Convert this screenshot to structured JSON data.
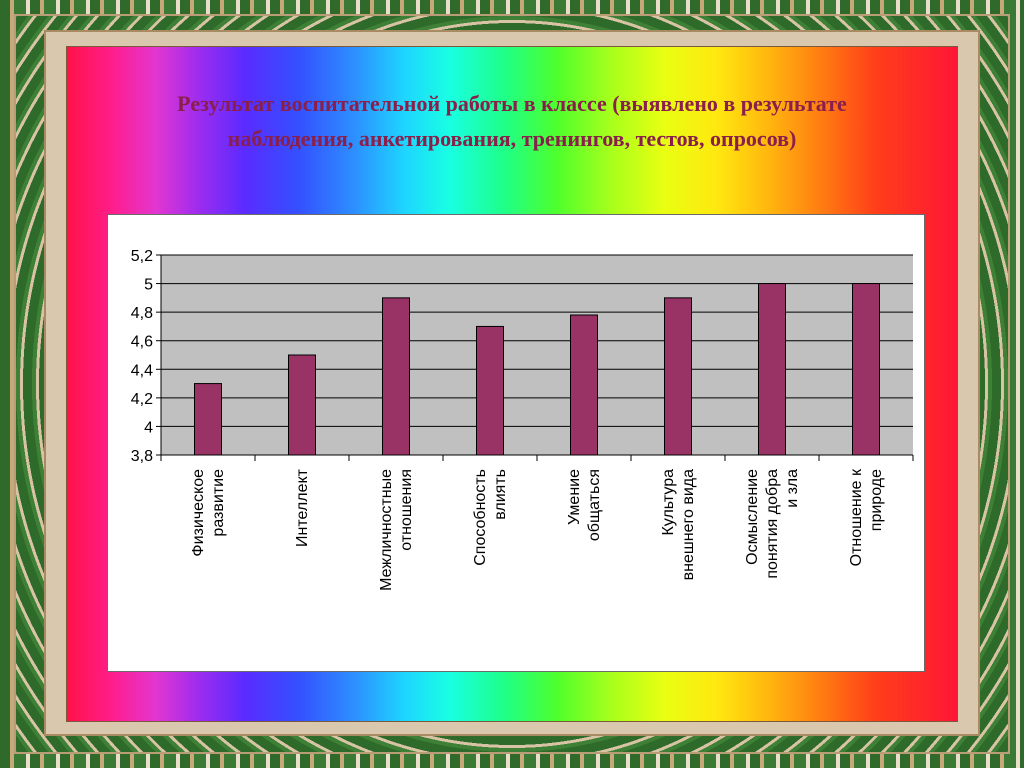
{
  "slide": {
    "title": "Результат воспитательной работы в классе (выявлено в результате наблюдения, анкетирования, тренингов, тестов, опросов)"
  },
  "chart_data": {
    "type": "bar",
    "categories": [
      [
        "Физическое",
        "развитие"
      ],
      [
        "Интеллект"
      ],
      [
        "Межличностные",
        "отношения"
      ],
      [
        "Способность",
        "влиять"
      ],
      [
        "Умение",
        "общаться"
      ],
      [
        "Культура",
        "внешнего вида"
      ],
      [
        "Осмысление",
        "понятия добра",
        "и зла"
      ],
      [
        "Отношение к",
        "природе"
      ]
    ],
    "values": [
      4.3,
      4.5,
      4.9,
      4.7,
      4.78,
      4.9,
      5.0,
      5.0
    ],
    "yticks": [
      "3,8",
      "4",
      "4,2",
      "4,4",
      "4,6",
      "4,8",
      "5",
      "5,2"
    ],
    "ylim": [
      3.8,
      5.2
    ],
    "grid": true,
    "legend": "none",
    "colors": {
      "bar": "#993366",
      "bar_outline": "#000000",
      "plot_bg": "#c0c0c0",
      "title": "#8a1f4c"
    }
  }
}
